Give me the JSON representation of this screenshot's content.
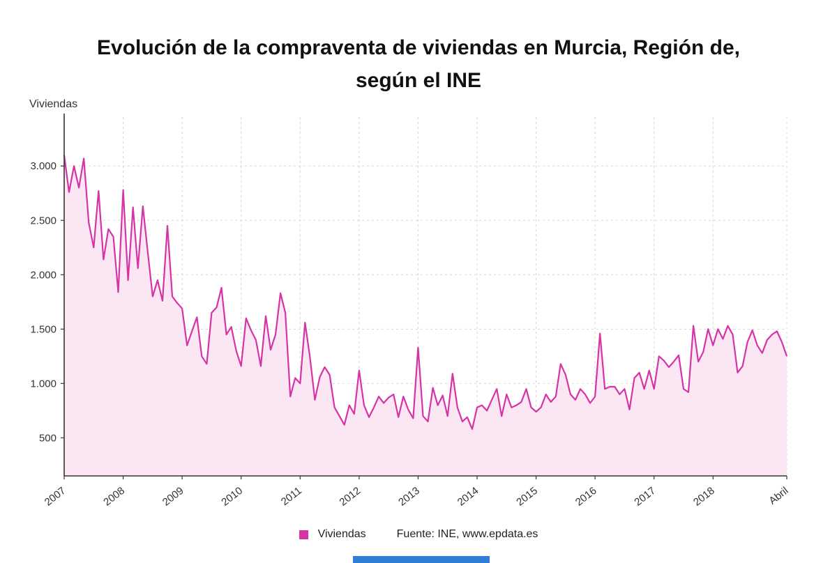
{
  "title_line1": "Evolución de la compraventa de viviendas en Murcia, Región de,",
  "title_line2": "según el INE",
  "legend": {
    "series_label": "Viviendas",
    "source_text": "Fuente: INE, www.epdata.es"
  },
  "colors": {
    "line": "#d634a6",
    "fill": "#fbe7f4",
    "axis": "#333333",
    "grid": "#d6d6d6",
    "text": "#333333",
    "epdata_bar": "#2f7ed8"
  },
  "chart_data": {
    "type": "line",
    "title": "Evolución de la compraventa de viviendas en Murcia, Región de, según el INE",
    "xlabel": "",
    "ylabel": "Viviendas",
    "ylim": [
      150,
      3450
    ],
    "grid": true,
    "legend_position": "bottom",
    "series_name": "Viviendas",
    "x_start": "2007",
    "x_end": "Abril",
    "y_ticks": [
      {
        "value": 500,
        "label": "500"
      },
      {
        "value": 1000,
        "label": "1.000"
      },
      {
        "value": 1500,
        "label": "1.500"
      },
      {
        "value": 2000,
        "label": "2.000"
      },
      {
        "value": 2500,
        "label": "2.500"
      },
      {
        "value": 3000,
        "label": "3.000"
      }
    ],
    "x_ticks": [
      {
        "month": 0,
        "label": "2007"
      },
      {
        "month": 12,
        "label": "2008"
      },
      {
        "month": 24,
        "label": "2009"
      },
      {
        "month": 36,
        "label": "2010"
      },
      {
        "month": 48,
        "label": "2011"
      },
      {
        "month": 60,
        "label": "2012"
      },
      {
        "month": 72,
        "label": "2013"
      },
      {
        "month": 84,
        "label": "2014"
      },
      {
        "month": 96,
        "label": "2015"
      },
      {
        "month": 108,
        "label": "2016"
      },
      {
        "month": 120,
        "label": "2017"
      },
      {
        "month": 132,
        "label": "2018"
      },
      {
        "month": 147,
        "label": "Abril"
      }
    ],
    "values": [
      3100,
      2760,
      3000,
      2800,
      3070,
      2480,
      2250,
      2770,
      2140,
      2420,
      2350,
      1840,
      2780,
      1950,
      2620,
      2060,
      2630,
      2210,
      1800,
      1950,
      1760,
      2450,
      1800,
      1740,
      1690,
      1350,
      1480,
      1610,
      1250,
      1180,
      1650,
      1700,
      1880,
      1450,
      1520,
      1300,
      1160,
      1600,
      1490,
      1400,
      1160,
      1620,
      1310,
      1450,
      1830,
      1650,
      880,
      1050,
      1000,
      1560,
      1240,
      850,
      1060,
      1150,
      1080,
      780,
      700,
      620,
      800,
      720,
      1120,
      800,
      690,
      780,
      880,
      820,
      870,
      900,
      690,
      880,
      760,
      680,
      1330,
      700,
      650,
      960,
      800,
      890,
      700,
      1090,
      780,
      650,
      690,
      580,
      780,
      800,
      750,
      850,
      950,
      700,
      900,
      780,
      800,
      830,
      950,
      780,
      740,
      780,
      900,
      830,
      880,
      1180,
      1080,
      900,
      850,
      950,
      900,
      820,
      880,
      1460,
      950,
      970,
      970,
      900,
      950,
      760,
      1050,
      1100,
      950,
      1120,
      950,
      1250,
      1210,
      1150,
      1200,
      1260,
      950,
      920,
      1530,
      1200,
      1290,
      1500,
      1350,
      1500,
      1410,
      1530,
      1450,
      1100,
      1160,
      1380,
      1490,
      1350,
      1280,
      1400,
      1450,
      1480,
      1380,
      1250
    ]
  }
}
